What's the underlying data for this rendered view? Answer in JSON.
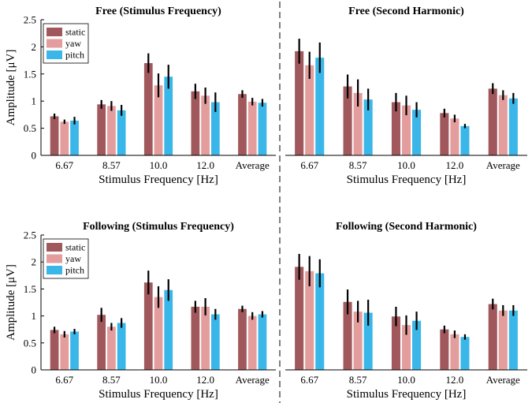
{
  "figure": {
    "divider_style": "dashed vertical line between left and right columns"
  },
  "colors": {
    "static": "#a0585c",
    "yaw": "#e39d9d",
    "pitch": "#3ab7e8",
    "error": "#000000"
  },
  "chart_data": [
    {
      "id": "free-stim",
      "type": "bar",
      "title": "Free (Stimulus Frequency)",
      "xlabel": "Stimulus Frequency [Hz]",
      "ylabel": "Amplitude [μV]",
      "ylim": [
        0,
        2.5
      ],
      "yticks": [
        "0",
        "0.5",
        "1",
        "1.5",
        "2",
        "2.5"
      ],
      "categories": [
        "6.67",
        "8.57",
        "10.0",
        "12.0",
        "Average"
      ],
      "legend": {
        "placement": "top-left",
        "entries": [
          "static",
          "yaw",
          "pitch"
        ]
      },
      "series": [
        {
          "name": "static",
          "values": [
            0.72,
            0.94,
            1.7,
            1.18,
            1.13
          ],
          "err": [
            0.05,
            0.08,
            0.18,
            0.14,
            0.07
          ]
        },
        {
          "name": "yaw",
          "values": [
            0.62,
            0.91,
            1.29,
            1.1,
            0.99
          ],
          "err": [
            0.04,
            0.09,
            0.22,
            0.15,
            0.07
          ]
        },
        {
          "name": "pitch",
          "values": [
            0.64,
            0.83,
            1.45,
            0.98,
            0.97
          ],
          "err": [
            0.07,
            0.1,
            0.22,
            0.18,
            0.07
          ]
        }
      ]
    },
    {
      "id": "free-harm",
      "type": "bar",
      "title": "Free (Second Harmonic)",
      "xlabel": "Stimulus Frequency [Hz]",
      "ylabel": "",
      "ylim": [
        0,
        2.5
      ],
      "yticks": [],
      "categories": [
        "6.67",
        "8.57",
        "10.0",
        "12.0",
        "Average"
      ],
      "legend": null,
      "series": [
        {
          "name": "static",
          "values": [
            1.92,
            1.27,
            0.98,
            0.78,
            1.23
          ],
          "err": [
            0.23,
            0.22,
            0.17,
            0.08,
            0.1
          ]
        },
        {
          "name": "yaw",
          "values": [
            1.66,
            1.15,
            0.92,
            0.68,
            1.11
          ],
          "err": [
            0.25,
            0.25,
            0.18,
            0.07,
            0.09
          ]
        },
        {
          "name": "pitch",
          "values": [
            1.8,
            1.03,
            0.84,
            0.54,
            1.05
          ],
          "err": [
            0.28,
            0.2,
            0.14,
            0.04,
            0.1
          ]
        }
      ]
    },
    {
      "id": "follow-stim",
      "type": "bar",
      "title": "Following (Stimulus Frequency)",
      "xlabel": "Stimulus Frequency [Hz]",
      "ylabel": "Amplitude [μV]",
      "ylim": [
        0,
        2.5
      ],
      "yticks": [
        "0",
        "0.5",
        "1",
        "1.5",
        "2",
        "2.5"
      ],
      "categories": [
        "6.67",
        "8.57",
        "10.0",
        "12.0",
        "Average"
      ],
      "legend": {
        "placement": "top-left",
        "entries": [
          "static",
          "yaw",
          "pitch"
        ]
      },
      "series": [
        {
          "name": "static",
          "values": [
            0.74,
            1.02,
            1.62,
            1.17,
            1.13
          ],
          "err": [
            0.06,
            0.13,
            0.22,
            0.11,
            0.06
          ]
        },
        {
          "name": "yaw",
          "values": [
            0.66,
            0.8,
            1.35,
            1.17,
            1.0
          ],
          "err": [
            0.06,
            0.07,
            0.2,
            0.16,
            0.07
          ]
        },
        {
          "name": "pitch",
          "values": [
            0.71,
            0.87,
            1.48,
            1.03,
            1.03
          ],
          "err": [
            0.05,
            0.09,
            0.2,
            0.1,
            0.06
          ]
        }
      ]
    },
    {
      "id": "follow-harm",
      "type": "bar",
      "title": "Following (Second Harmonic)",
      "xlabel": "Stimulus Frequency [Hz]",
      "ylabel": "",
      "ylim": [
        0,
        2.5
      ],
      "yticks": [],
      "categories": [
        "6.67",
        "8.57",
        "10.0",
        "12.0",
        "Average"
      ],
      "legend": null,
      "series": [
        {
          "name": "static",
          "values": [
            1.91,
            1.26,
            0.99,
            0.75,
            1.22
          ],
          "err": [
            0.24,
            0.23,
            0.18,
            0.07,
            0.1
          ]
        },
        {
          "name": "yaw",
          "values": [
            1.83,
            1.08,
            0.83,
            0.66,
            1.1
          ],
          "err": [
            0.28,
            0.2,
            0.18,
            0.07,
            0.1
          ]
        },
        {
          "name": "pitch",
          "values": [
            1.79,
            1.06,
            0.91,
            0.61,
            1.1
          ],
          "err": [
            0.26,
            0.24,
            0.17,
            0.05,
            0.1
          ]
        }
      ]
    }
  ]
}
